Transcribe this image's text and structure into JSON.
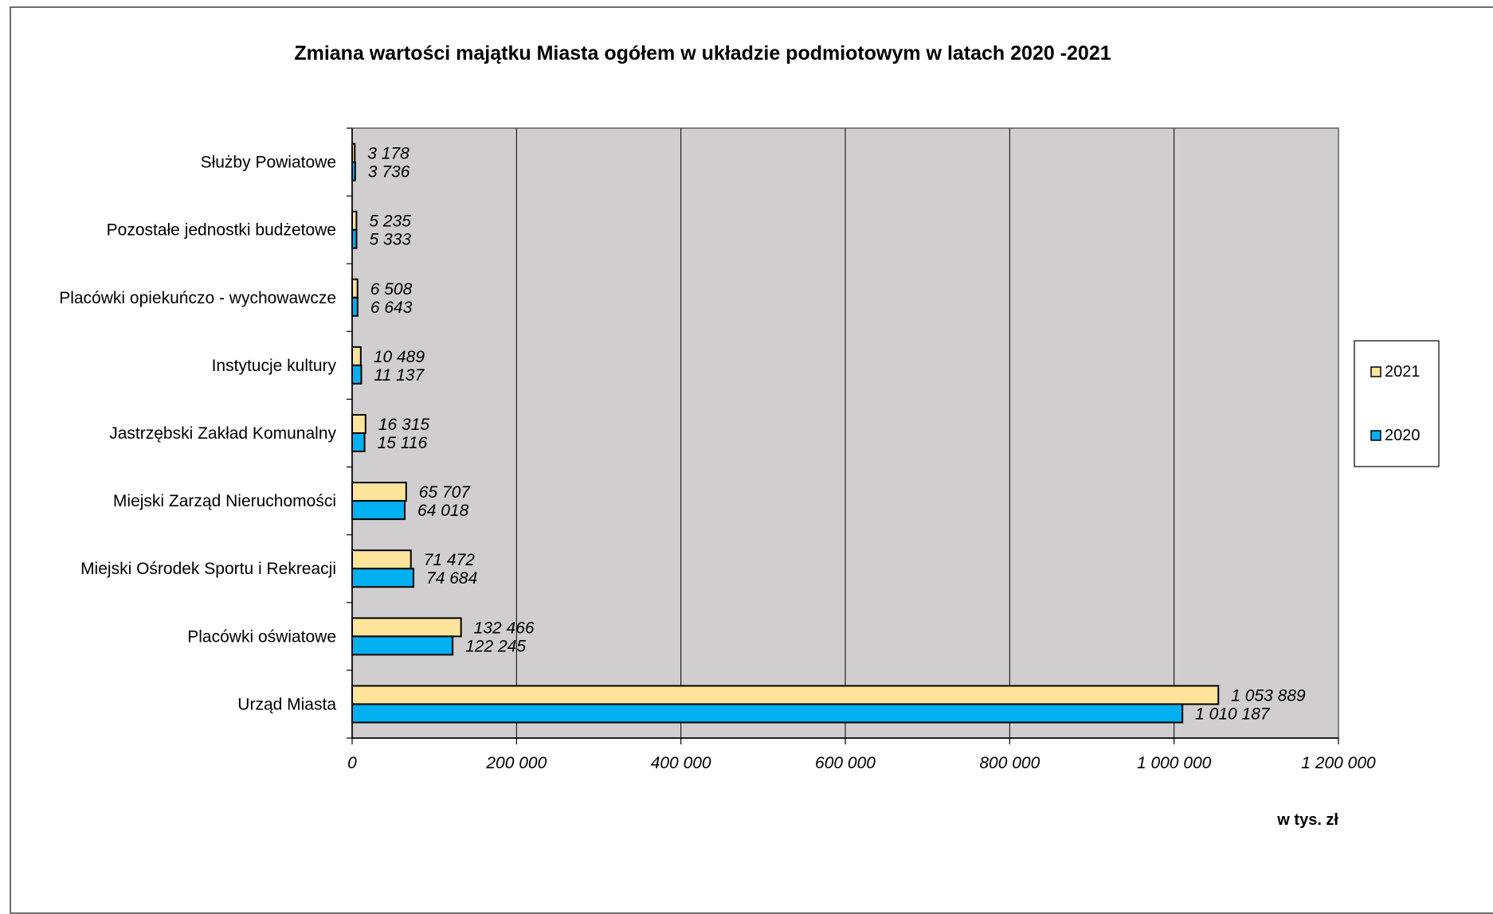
{
  "chart_data": {
    "type": "bar",
    "orientation": "horizontal",
    "title": "Zmiana wartości majątku Miasta ogółem w układzie podmiotowym w latach 2020 -2021",
    "unit_label": "w tys. zł",
    "categories": [
      "Służby Powiatowe",
      "Pozostałe jednostki budżetowe",
      "Placówki opiekuńczo - wychowawcze",
      "Instytucje kultury",
      "Jastrzębski Zakład Komunalny",
      "Miejski Zarząd Nieruchomości",
      "Miejski Ośrodek Sportu i Rekreacji",
      "Placówki oświatowe",
      "Urząd Miasta"
    ],
    "series": [
      {
        "name": "2021",
        "color": "#FFE49B",
        "values": [
          3178,
          5235,
          6508,
          10489,
          16315,
          65707,
          71472,
          132466,
          1053889
        ],
        "labels": [
          "3 178",
          "5 235",
          "6 508",
          "10 489",
          "16 315",
          "65 707",
          "71 472",
          "132 466",
          "1 053 889"
        ]
      },
      {
        "name": "2020",
        "color": "#00B0F0",
        "values": [
          3736,
          5333,
          6643,
          11137,
          15116,
          64018,
          74684,
          122245,
          1010187
        ],
        "labels": [
          "3 736",
          "5 333",
          "6 643",
          "11 137",
          "15 116",
          "64 018",
          "74 684",
          "122 245",
          "1 010 187"
        ]
      }
    ],
    "xlim": [
      0,
      1200000
    ],
    "xticks": [
      0,
      200000,
      400000,
      600000,
      800000,
      1000000,
      1200000
    ],
    "xtick_labels": [
      "0",
      "200 000",
      "400 000",
      "600 000",
      "800 000",
      "1 000 000",
      "1 200 000"
    ],
    "grid": "vertical",
    "plot_background": "#D0CECF",
    "legend_position": "right"
  }
}
